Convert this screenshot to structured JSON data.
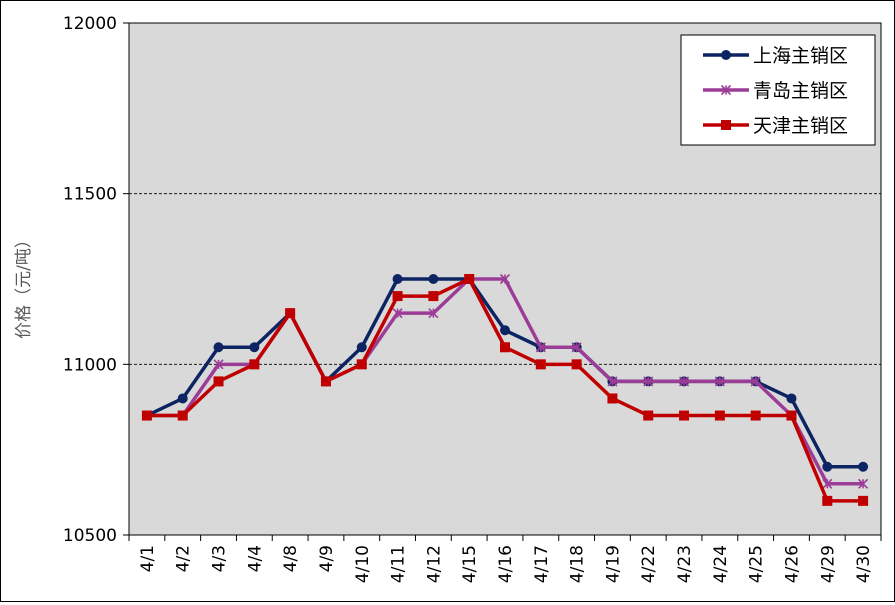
{
  "chart_data": {
    "type": "line",
    "title": "",
    "xlabel": "",
    "ylabel": "价格（元/吨）",
    "ylim": [
      10500,
      12000
    ],
    "yticks": [
      10500,
      11000,
      11500,
      12000
    ],
    "gridlines": [
      11000,
      11500
    ],
    "grid": "horizontal dashed",
    "legend_position": "top-right",
    "categories": [
      "4/1",
      "4/2",
      "4/3",
      "4/4",
      "4/8",
      "4/9",
      "4/10",
      "4/11",
      "4/12",
      "4/15",
      "4/16",
      "4/17",
      "4/18",
      "4/19",
      "4/22",
      "4/23",
      "4/24",
      "4/25",
      "4/26",
      "4/29",
      "4/30"
    ],
    "series": [
      {
        "name": "上海主销区",
        "color": "#0d2463",
        "marker": "circle",
        "values": [
          10850,
          10900,
          11050,
          11050,
          11150,
          10950,
          11050,
          11250,
          11250,
          11250,
          11100,
          11050,
          11050,
          10950,
          10950,
          10950,
          10950,
          10950,
          10900,
          10700,
          10700
        ]
      },
      {
        "name": "青岛主销区",
        "color": "#9b3d97",
        "marker": "star",
        "values": [
          10850,
          10850,
          11000,
          11000,
          11150,
          10950,
          11000,
          11150,
          11150,
          11250,
          11250,
          11050,
          11050,
          10950,
          10950,
          10950,
          10950,
          10950,
          10850,
          10650,
          10650
        ]
      },
      {
        "name": "天津主销区",
        "color": "#c00000",
        "marker": "square",
        "values": [
          10850,
          10850,
          10950,
          11000,
          11150,
          10950,
          11000,
          11200,
          11200,
          11250,
          11050,
          11000,
          11000,
          10900,
          10850,
          10850,
          10850,
          10850,
          10850,
          10600,
          10600
        ]
      }
    ]
  }
}
